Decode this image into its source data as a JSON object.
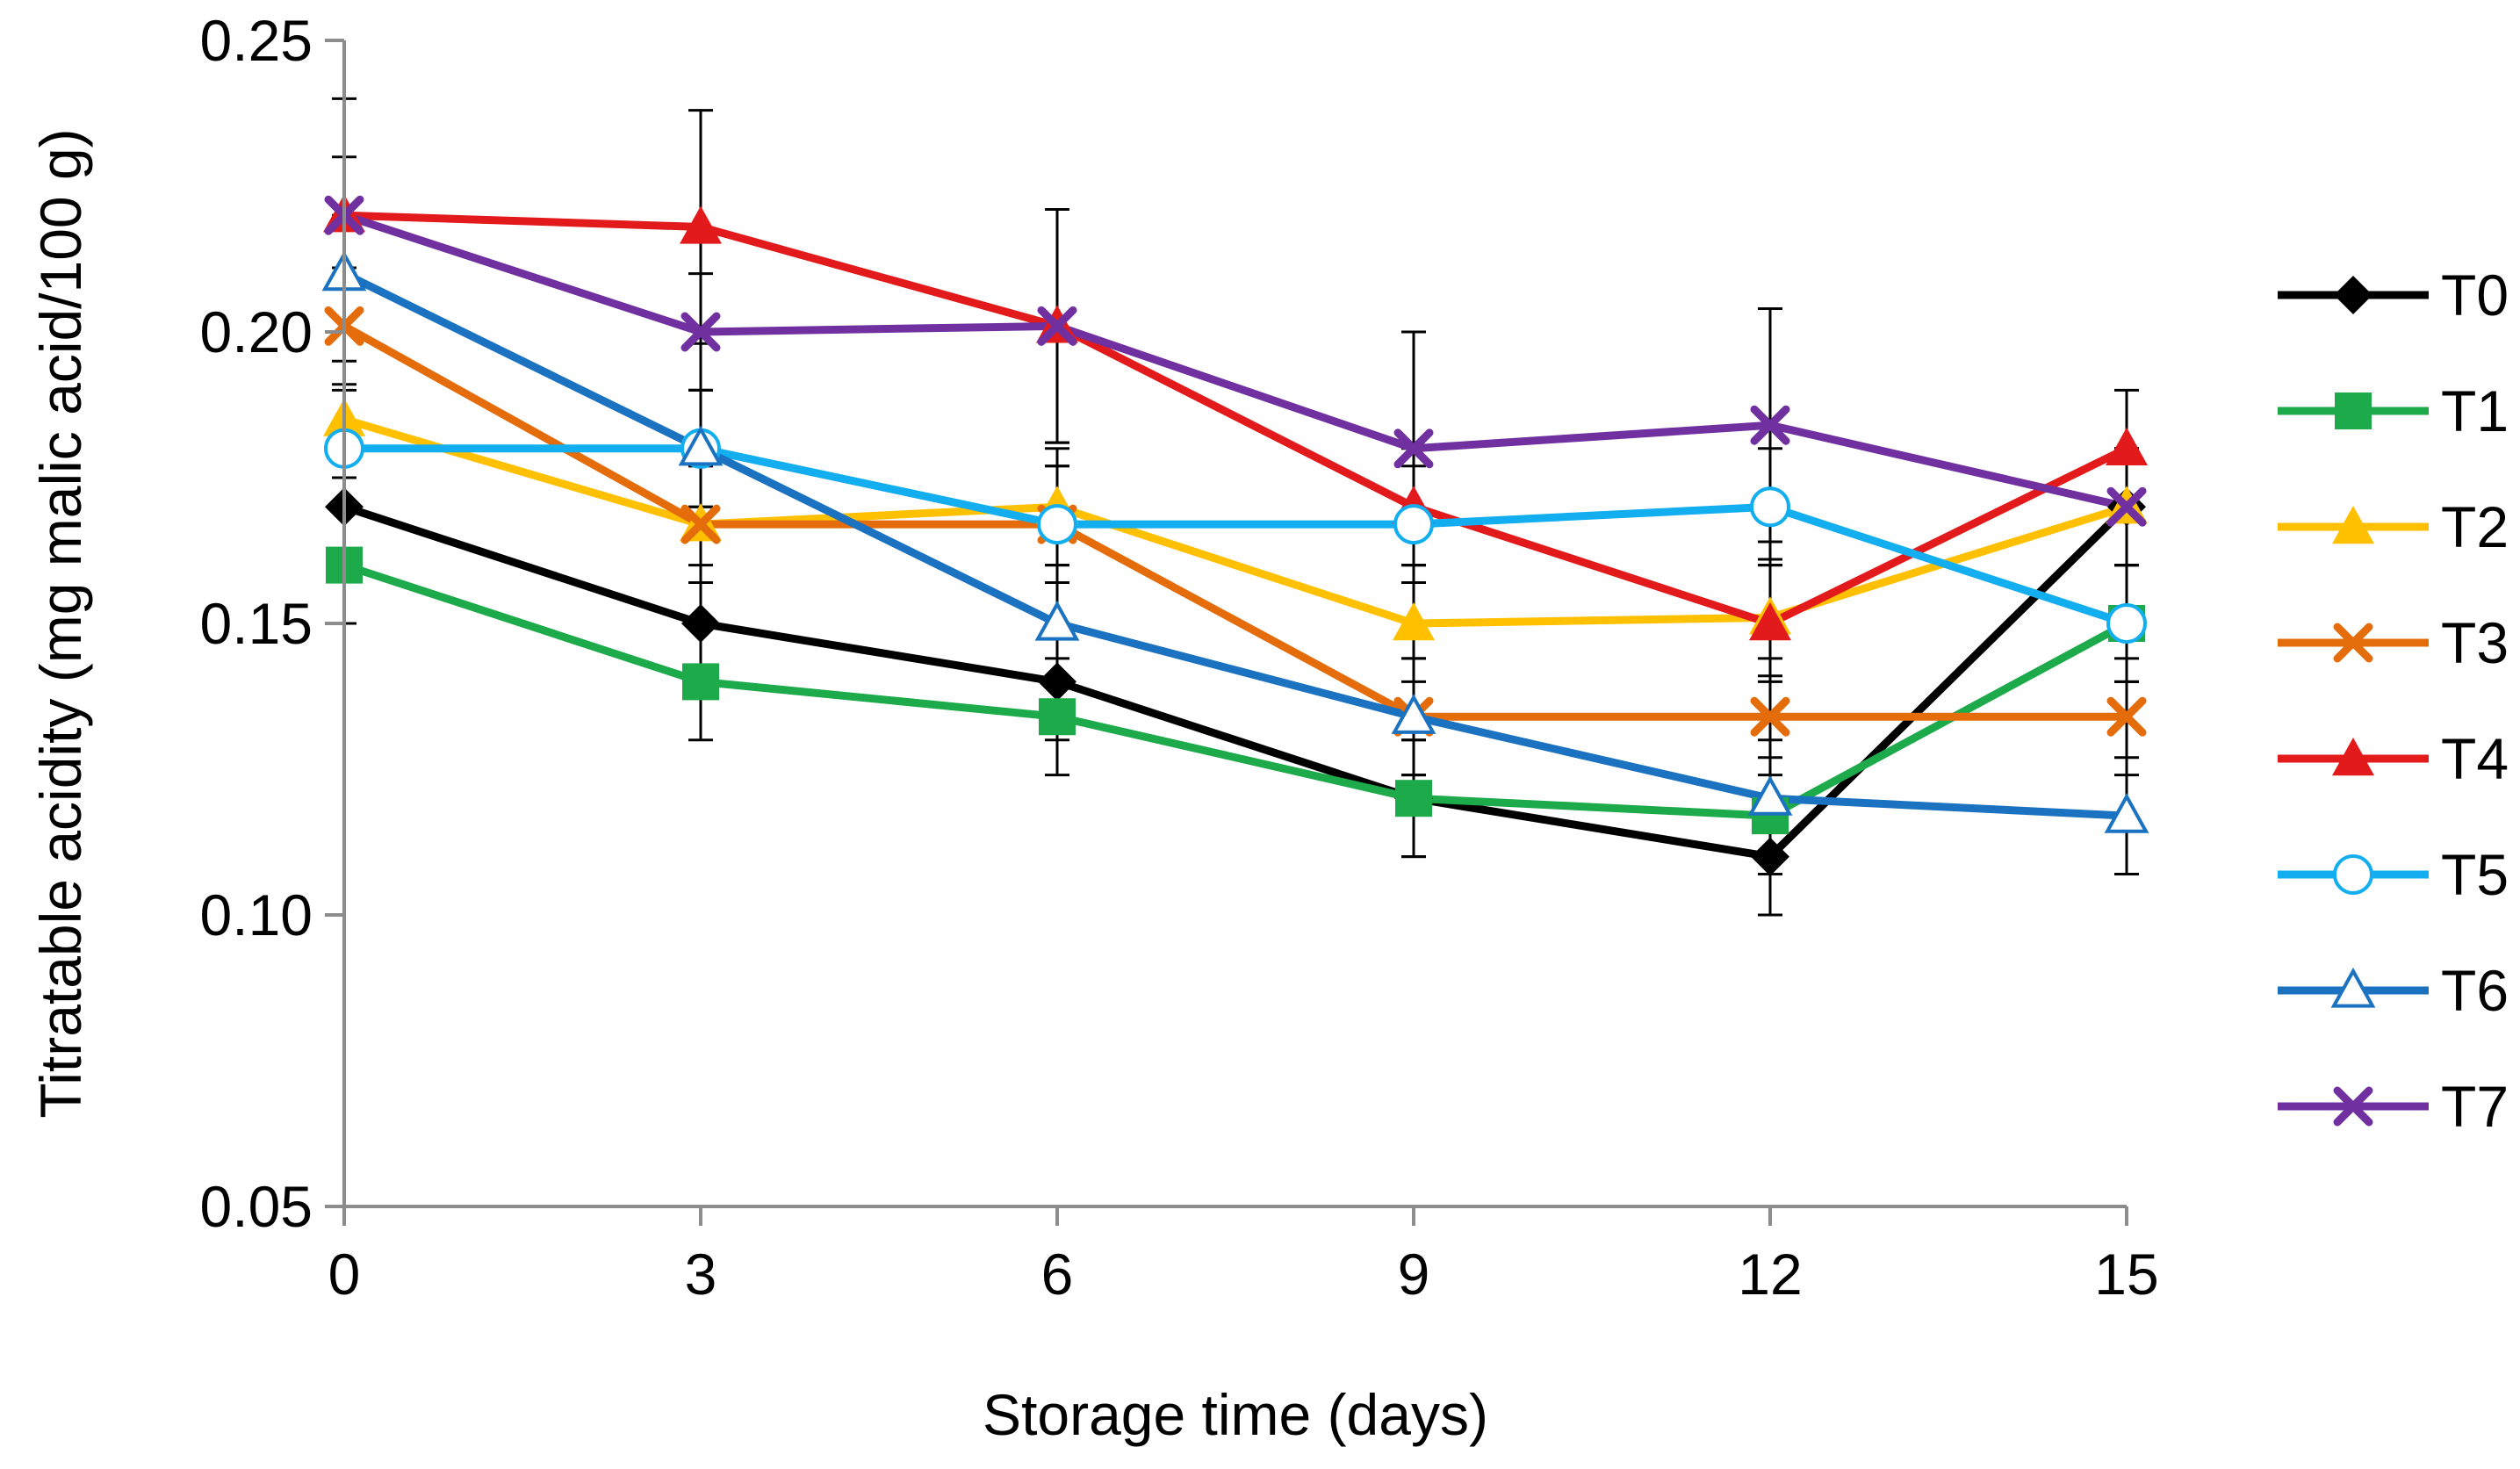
{
  "chart_data": {
    "type": "line",
    "title": "",
    "xlabel": "Storage time (days)",
    "ylabel": "Titratable acidity (mg malic acid/100 g)",
    "x": [
      0,
      3,
      6,
      9,
      12,
      15
    ],
    "x_tick_labels": [
      "0",
      "3",
      "6",
      "9",
      "12",
      "15"
    ],
    "ylim": [
      0.05,
      0.25
    ],
    "y_ticks": [
      0.05,
      0.1,
      0.15,
      0.2,
      0.25
    ],
    "y_tick_labels": [
      "0.05",
      "0.10",
      "0.15",
      "0.20",
      "0.25"
    ],
    "grid": false,
    "legend": "right",
    "series": [
      {
        "name": "T0",
        "color": "#000000",
        "marker": "diamond",
        "values": [
          0.17,
          0.15,
          0.14,
          0.12,
          0.11,
          0.17
        ],
        "errors": [
          0.01,
          0.01,
          0.01,
          0.01,
          0.01,
          0.01
        ]
      },
      {
        "name": "T1",
        "color": "#1daa4a",
        "marker": "square",
        "values": [
          0.16,
          0.14,
          0.134,
          0.12,
          0.117,
          0.15
        ],
        "errors": [
          0.01,
          0.01,
          0.01,
          0.01,
          0.01,
          0.01
        ]
      },
      {
        "name": "T2",
        "color": "#ffc000",
        "marker": "triangle",
        "values": [
          0.185,
          0.167,
          0.17,
          0.15,
          0.151,
          0.17
        ],
        "errors": [
          0.01,
          0.01,
          0.01,
          0.01,
          0.01,
          0.01
        ]
      },
      {
        "name": "T3",
        "color": "#e46c0a",
        "marker": "x",
        "values": [
          0.201,
          0.167,
          0.167,
          0.134,
          0.134,
          0.134
        ],
        "errors": [
          0.01,
          0.01,
          0.01,
          0.01,
          0.01,
          0.01
        ]
      },
      {
        "name": "T4",
        "color": "#e31a1c",
        "marker": "triangle",
        "values": [
          0.22,
          0.218,
          0.201,
          0.17,
          0.15,
          0.18
        ],
        "errors": [
          0.01,
          0.02,
          0.02,
          0.01,
          0.01,
          0.01
        ]
      },
      {
        "name": "T5",
        "color": "#12aef0",
        "marker": "circle-open",
        "values": [
          0.18,
          0.18,
          0.167,
          0.167,
          0.17,
          0.15
        ],
        "errors": [
          0.01,
          0.01,
          0.01,
          0.01,
          0.01,
          0.01
        ]
      },
      {
        "name": "T6",
        "color": "#1b72c0",
        "marker": "triangle-open",
        "values": [
          0.21,
          0.18,
          0.15,
          0.134,
          0.12,
          0.117
        ],
        "errors": [
          0.01,
          0.01,
          0.01,
          0.01,
          0.01,
          0.01
        ]
      },
      {
        "name": "T7",
        "color": "#7030a0",
        "marker": "x",
        "values": [
          0.22,
          0.2,
          0.201,
          0.18,
          0.184,
          0.17
        ],
        "errors": [
          0.02,
          0.01,
          0.02,
          0.02,
          0.02,
          0.01
        ]
      }
    ]
  }
}
